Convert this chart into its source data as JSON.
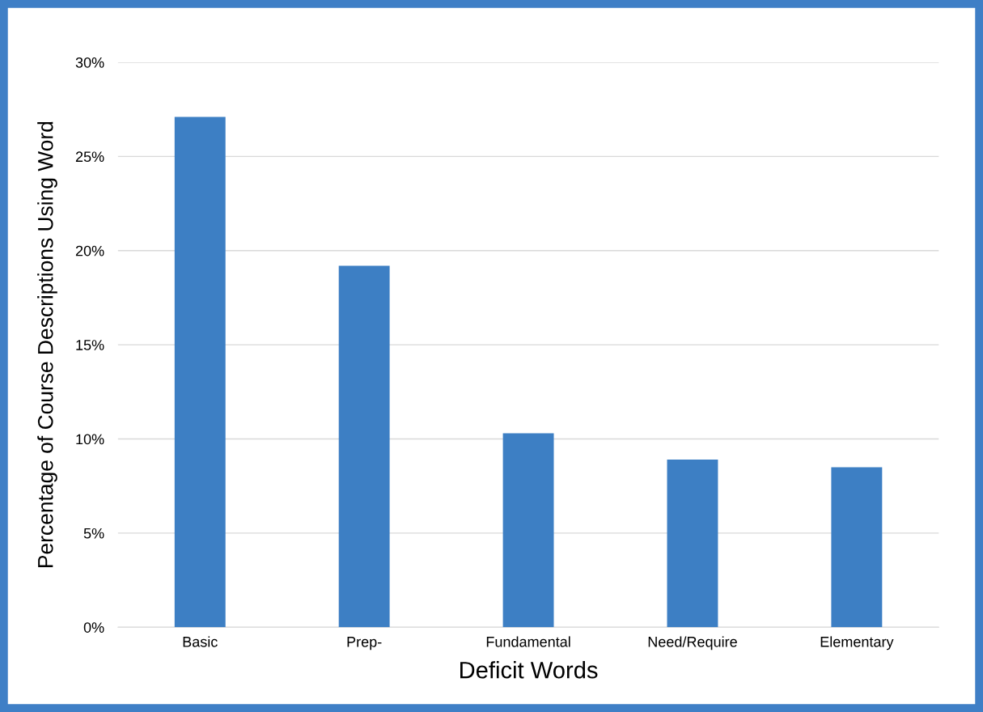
{
  "chart_data": {
    "type": "bar",
    "xlabel": "Deficit Words",
    "ylabel": "Percentage of Course Descriptions Using Word",
    "categories": [
      "Basic",
      "Prep-",
      "Fundamental",
      "Need/Require",
      "Elementary"
    ],
    "values": [
      27.1,
      19.2,
      10.3,
      8.9,
      8.5
    ],
    "color": "#3d7fc4",
    "ylim": [
      0,
      30
    ],
    "yticks": [
      {
        "value": 0,
        "label": "0%"
      },
      {
        "value": 5,
        "label": "5%"
      },
      {
        "value": 10,
        "label": "10%"
      },
      {
        "value": 15,
        "label": "15%"
      },
      {
        "value": 20,
        "label": "20%"
      },
      {
        "value": 25,
        "label": "25%"
      },
      {
        "value": 30,
        "label": "30%"
      }
    ],
    "grid": "y",
    "legend": false
  }
}
